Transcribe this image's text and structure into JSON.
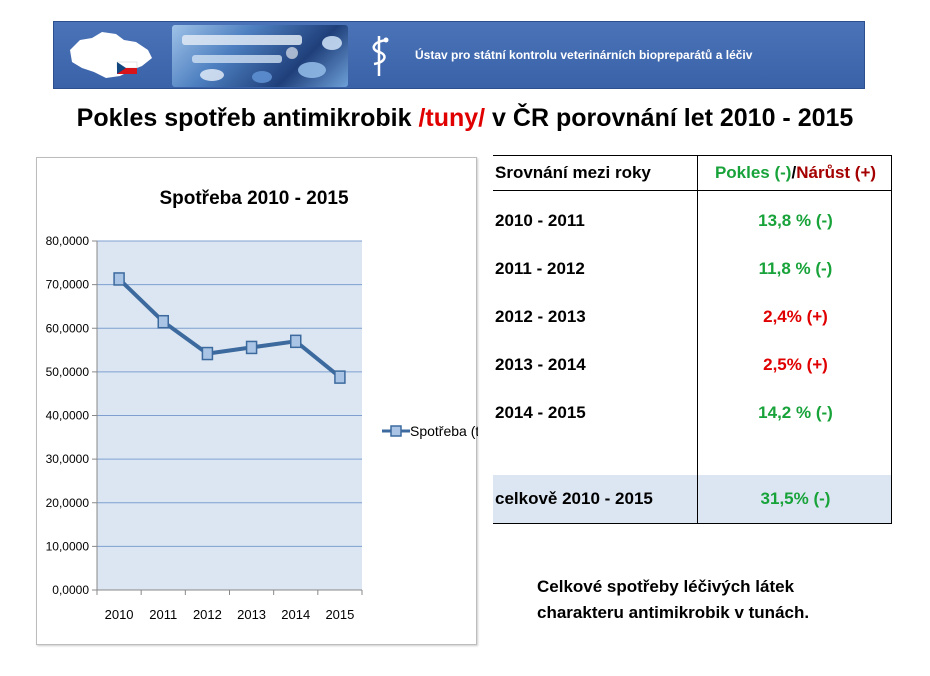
{
  "banner": {
    "org_name": "Ústav pro státní kontrolu veterinárních biopreparátů a léčiv",
    "map_icon": "czech-map-flag-icon",
    "logo_icon": "caduceus-logo-icon",
    "photo": "medicines-photo"
  },
  "title": {
    "part1": "Pokles spotřeb antimikrobik ",
    "part2": "/tuny/",
    "part3": " v ČR  porovnání let 2010 - 2015",
    "highlight_color": "#e00000"
  },
  "chart_data": {
    "type": "line",
    "title": "Spotřeba 2010 - 2015",
    "categories": [
      "2010",
      "2011",
      "2012",
      "2013",
      "2014",
      "2015"
    ],
    "series": [
      {
        "name": "Spotřeba (t)",
        "values": [
          71.3,
          61.5,
          54.2,
          55.6,
          57.0,
          48.8
        ],
        "color": "#3c6a9e"
      }
    ],
    "ylim": [
      0,
      80
    ],
    "y_ticks": [
      0,
      10,
      20,
      30,
      40,
      50,
      60,
      70,
      80
    ],
    "y_tick_labels": [
      "0,0000",
      "10,0000",
      "20,0000",
      "30,0000",
      "40,0000",
      "50,0000",
      "60,0000",
      "70,0000",
      "80,0000"
    ],
    "grid": true,
    "legend": "right",
    "plot_background": "#dce6f2"
  },
  "table": {
    "header_left": "Srovnání mezi roky",
    "header_pokles": "Pokles (-)",
    "header_sep": "/",
    "header_narust": "Nárůst (+)",
    "rows": [
      {
        "period": "2010 - 2011",
        "change": "13,8 % (-)",
        "trend": "down"
      },
      {
        "period": "2011 - 2012",
        "change": "11,8 % (-)",
        "trend": "down"
      },
      {
        "period": "2012 - 2013",
        "change": "2,4% (+)",
        "trend": "up"
      },
      {
        "period": "2013 - 2014",
        "change": "2,5% (+)",
        "trend": "up"
      },
      {
        "period": "2014 - 2015",
        "change": "14,2 % (-)",
        "trend": "down"
      }
    ],
    "total_label": "celkově 2010 - 2015",
    "total_change": "31,5% (-)"
  },
  "note": {
    "line1": "Celkové spotřeby léčivých látek",
    "line2": "charakteru antimikrobik v tunách."
  }
}
